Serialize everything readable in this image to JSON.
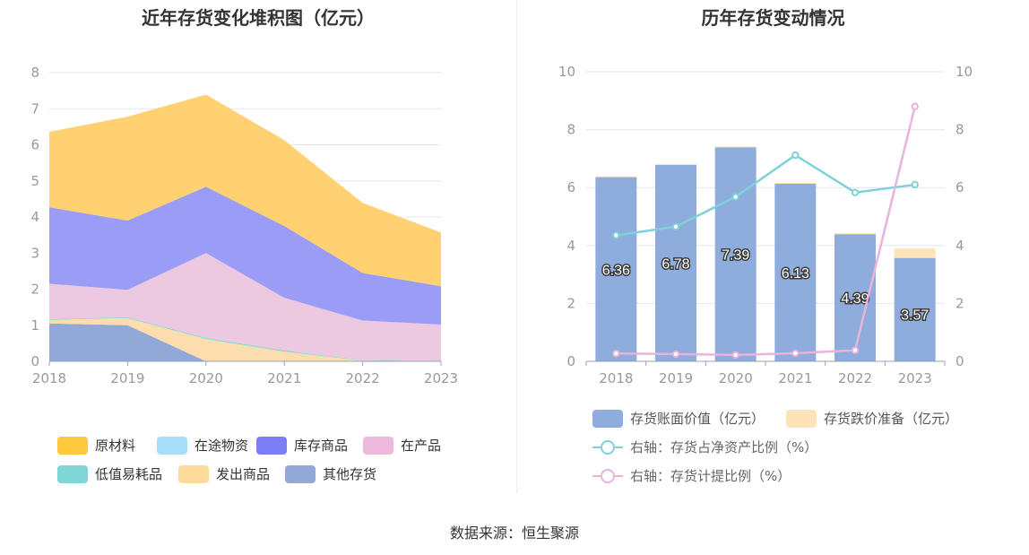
{
  "left_chart": {
    "title": "近年存货变化堆积图（亿元）",
    "chart_data": {
      "type": "area",
      "stacked": true,
      "x": [
        "2018",
        "2019",
        "2020",
        "2021",
        "2022",
        "2023"
      ],
      "ylim": [
        0,
        8
      ],
      "yticks": [
        "0",
        "1",
        "2",
        "3",
        "4",
        "5",
        "6",
        "7",
        "8"
      ],
      "grid": true,
      "legend_position": "bottom",
      "series": [
        {
          "name": "其他存货",
          "color": "#92a9d8",
          "values": [
            1.05,
            1.0,
            0.0,
            0.0,
            0.0,
            0.0
          ]
        },
        {
          "name": "发出商品",
          "color": "#fdddad",
          "values": [
            0.1,
            0.2,
            0.62,
            0.27,
            0.02,
            0.0
          ]
        },
        {
          "name": "低值易耗品",
          "color": "#7fd6d6",
          "values": [
            0.02,
            0.02,
            0.03,
            0.03,
            0.01,
            0.01
          ]
        },
        {
          "name": "在途物资",
          "color": "#a4dff7",
          "values": [
            0.0,
            0.0,
            0.0,
            0.0,
            0.0,
            0.0
          ]
        },
        {
          "name": "在产品",
          "color": "#ecc9e1",
          "values": [
            0.98,
            0.76,
            2.35,
            1.46,
            1.1,
            1.01
          ]
        },
        {
          "name": "库存商品",
          "color": "#9a9cf5",
          "values": [
            2.12,
            1.92,
            1.84,
            1.99,
            1.32,
            1.06
          ]
        },
        {
          "name": "原材料",
          "color": "#ffd170",
          "values": [
            2.09,
            2.88,
            2.55,
            2.38,
            1.94,
            1.49
          ]
        }
      ]
    },
    "legend": [
      {
        "name": "原材料",
        "color": "#ffc93d"
      },
      {
        "name": "在途物资",
        "color": "#a4dff7"
      },
      {
        "name": "库存商品",
        "color": "#7c7ef5"
      },
      {
        "name": "在产品",
        "color": "#ecb9dc"
      },
      {
        "name": "低值易耗品",
        "color": "#7fd6d6"
      },
      {
        "name": "发出商品",
        "color": "#fdd99a"
      },
      {
        "name": "其他存货",
        "color": "#92a9d8"
      }
    ]
  },
  "right_chart": {
    "title": "历年存货变动情况",
    "chart_data": {
      "type": "bar",
      "stacked": true,
      "categories": [
        "2018",
        "2019",
        "2020",
        "2021",
        "2022",
        "2023"
      ],
      "ylim": [
        0,
        10
      ],
      "yticks": [
        "0",
        "2",
        "4",
        "6",
        "8",
        "10"
      ],
      "y2lim": [
        0,
        10
      ],
      "y2ticks": [
        "0",
        "2",
        "4",
        "6",
        "8",
        "10"
      ],
      "grid": true,
      "legend_position": "bottom",
      "series": [
        {
          "name": "存货账面价值（亿元）",
          "type": "bar",
          "color": "#8eacdc",
          "values": [
            6.36,
            6.78,
            7.39,
            6.13,
            4.39,
            3.57
          ],
          "labels": [
            "6.36",
            "6.78",
            "7.39",
            "6.13",
            "4.39",
            "3.57"
          ]
        },
        {
          "name": "存货跌价准备（亿元）",
          "type": "bar",
          "color": "#ffe3b8",
          "values": [
            0.03,
            0.03,
            0.03,
            0.03,
            0.03,
            0.33
          ]
        },
        {
          "name": "右轴：存货占净资产比例（%）",
          "type": "line",
          "axis": "right",
          "color": "#7fd1d8",
          "values": [
            4.35,
            4.65,
            5.68,
            7.12,
            5.83,
            6.1
          ]
        },
        {
          "name": "右轴：存货计提比例（%）",
          "type": "line",
          "axis": "right",
          "color": "#e8b4da",
          "values": [
            0.27,
            0.25,
            0.22,
            0.28,
            0.38,
            8.8
          ]
        }
      ]
    }
  },
  "source": "数据来源：恒生聚源"
}
